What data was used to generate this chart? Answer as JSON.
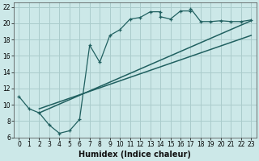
{
  "xlabel": "Humidex (Indice chaleur)",
  "bg_color": "#cce8e8",
  "grid_color": "#aacccc",
  "line_color": "#206060",
  "xlim": [
    -0.5,
    23.5
  ],
  "ylim": [
    6,
    22.5
  ],
  "xticks": [
    0,
    1,
    2,
    3,
    4,
    5,
    6,
    7,
    8,
    9,
    10,
    11,
    12,
    13,
    14,
    15,
    16,
    17,
    18,
    19,
    20,
    21,
    22,
    23
  ],
  "yticks": [
    6,
    8,
    10,
    12,
    14,
    16,
    18,
    20,
    22
  ],
  "zigzag_x": [
    0,
    1,
    2,
    3,
    4,
    5,
    6,
    7,
    8,
    9,
    10,
    11,
    12,
    13,
    14,
    14,
    15,
    16,
    17,
    17,
    18,
    19,
    20,
    21,
    22,
    23
  ],
  "zigzag_y": [
    11,
    9.5,
    9,
    7.5,
    6.5,
    6.8,
    8.2,
    17.3,
    15.2,
    18.5,
    19.2,
    20.5,
    20.7,
    21.4,
    21.4,
    20.8,
    20.5,
    21.5,
    21.5,
    21.8,
    20.2,
    20.2,
    20.3,
    20.2,
    20.2,
    20.4
  ],
  "line1_x": [
    2,
    23
  ],
  "line1_y": [
    9.0,
    20.3
  ],
  "line2_x": [
    2,
    23
  ],
  "line2_y": [
    9.5,
    18.5
  ],
  "xlabel_fontsize": 7,
  "tick_fontsize": 5.5
}
